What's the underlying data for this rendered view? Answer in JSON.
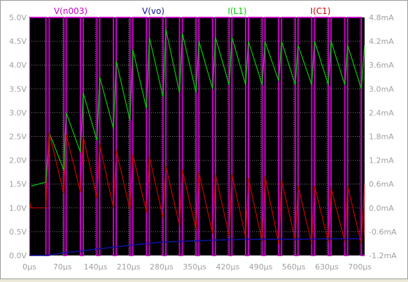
{
  "chart_data": {
    "type": "line",
    "legend": [
      {
        "label": "V(n003)",
        "color": "#cc00cc"
      },
      {
        "label": "V(vo)",
        "color": "#1010a0"
      },
      {
        "label": "I(L1)",
        "color": "#00cc00"
      },
      {
        "label": "I(C1)",
        "color": "#cc0000"
      }
    ],
    "x_ticks": [
      "0µs",
      "70µs",
      "140µs",
      "210µs",
      "280µs",
      "350µs",
      "420µs",
      "490µs",
      "560µs",
      "630µs",
      "700µs"
    ],
    "y_left_ticks": [
      "0.0V",
      "0.5V",
      "1.0V",
      "1.5V",
      "2.0V",
      "2.5V",
      "3.0V",
      "3.5V",
      "4.0V",
      "4.5V",
      "5.0V"
    ],
    "y_right_ticks": [
      "-1.2mA",
      "-0.6mA",
      "0.0mA",
      "0.6mA",
      "1.2mA",
      "1.8mA",
      "2.4mA",
      "3.0mA",
      "3.6mA",
      "4.2mA",
      "4.8mA"
    ],
    "x_range_us": [
      0,
      710
    ],
    "y_left_range_V": [
      0,
      5
    ],
    "y_right_range_mA": [
      -1.2,
      4.8
    ],
    "grid": true,
    "background": "#000000",
    "grid_color": "#808080",
    "text_color": "#a0a0a0",
    "pwm": {
      "series": "V(n003)",
      "color": "#cc00cc",
      "units": "V",
      "high": 5.0,
      "low": 0.0,
      "high_intervals_us": [
        [
          0,
          35
        ],
        [
          42,
          73
        ],
        [
          78,
          108
        ],
        [
          114,
          143
        ],
        [
          149,
          178
        ],
        [
          184,
          213
        ],
        [
          219,
          248
        ],
        [
          254,
          283
        ],
        [
          289,
          318
        ],
        [
          324,
          353
        ],
        [
          359,
          388
        ],
        [
          394,
          423
        ],
        [
          429,
          458
        ],
        [
          464,
          493
        ],
        [
          499,
          528
        ],
        [
          534,
          563
        ],
        [
          569,
          598
        ],
        [
          604,
          633
        ],
        [
          639,
          668
        ],
        [
          674,
          703
        ]
      ]
    },
    "vo": {
      "series": "V(vo)",
      "color": "#1010a0",
      "units": "V",
      "x": [
        0,
        35,
        70,
        140,
        210,
        280,
        350,
        420,
        490,
        560,
        630,
        700
      ],
      "y": [
        0.0,
        0.0,
        0.05,
        0.13,
        0.21,
        0.28,
        0.31,
        0.33,
        0.34,
        0.34,
        0.35,
        0.35
      ]
    },
    "il1": {
      "series": "I(L1)",
      "color": "#00cc00",
      "units": "mA",
      "rise_start_mA": 0.55,
      "peaks_mA": [
        1.9,
        2.4,
        2.9,
        3.3,
        3.7,
        4.0,
        4.3,
        4.5,
        4.4,
        4.2,
        4.3,
        4.3,
        4.2,
        4.2,
        4.2,
        4.1,
        4.2,
        4.2,
        4.1,
        4.1
      ],
      "valleys_mA": [
        0.65,
        0.95,
        1.4,
        1.7,
        2.0,
        2.2,
        2.5,
        2.8,
        2.9,
        2.9,
        3.0,
        3.1,
        3.1,
        3.1,
        3.2,
        3.1,
        3.1,
        3.1,
        3.1,
        3.0
      ]
    },
    "ic1": {
      "series": "I(C1)",
      "color": "#cc0000",
      "units": "mA",
      "initial_mA": 0.2,
      "flat_mA": 0.0,
      "peaks_mA": [
        1.9,
        1.85,
        1.8,
        1.6,
        1.45,
        1.35,
        1.3,
        1.05,
        0.95,
        0.9,
        0.85,
        0.85,
        0.75,
        0.8,
        0.7,
        0.55,
        0.55,
        0.5,
        0.55,
        0.6
      ],
      "valleys_mA": [
        0.35,
        0.4,
        0.25,
        0.0,
        -0.05,
        -0.1,
        -0.25,
        -0.45,
        -0.55,
        -0.65,
        -0.7,
        -0.75,
        -0.85,
        -0.9,
        -0.8,
        -0.9,
        -0.85,
        -0.85,
        -0.9,
        -0.7
      ]
    }
  }
}
